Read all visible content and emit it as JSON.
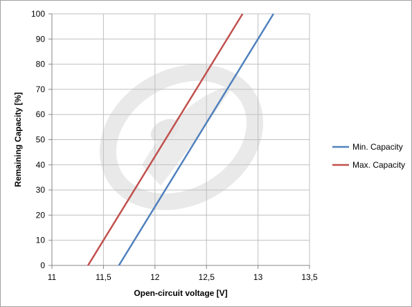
{
  "chart_data": {
    "type": "line",
    "xlabel": "Open-circuit voltage [V]",
    "ylabel": "Remaining Capacity [%]",
    "xlim": [
      11,
      13.5
    ],
    "ylim": [
      0,
      100
    ],
    "x_ticks": [
      {
        "value": 11,
        "label": "11"
      },
      {
        "value": 11.5,
        "label": "11,5"
      },
      {
        "value": 12,
        "label": "12"
      },
      {
        "value": 12.5,
        "label": "12,5"
      },
      {
        "value": 13,
        "label": "13"
      },
      {
        "value": 13.5,
        "label": "13,5"
      }
    ],
    "y_ticks": [
      {
        "value": 0,
        "label": "0"
      },
      {
        "value": 10,
        "label": "10"
      },
      {
        "value": 20,
        "label": "20"
      },
      {
        "value": 30,
        "label": "30"
      },
      {
        "value": 40,
        "label": "40"
      },
      {
        "value": 50,
        "label": "50"
      },
      {
        "value": 60,
        "label": "60"
      },
      {
        "value": 70,
        "label": "70"
      },
      {
        "value": 80,
        "label": "80"
      },
      {
        "value": 90,
        "label": "90"
      },
      {
        "value": 100,
        "label": "100"
      }
    ],
    "grid": true,
    "legend_position": "right",
    "series": [
      {
        "name": "Min. Capacity",
        "color": "#4f81bd",
        "x": [
          11.65,
          13.15
        ],
        "y": [
          0,
          100
        ]
      },
      {
        "name": "Max. Capacity",
        "color": "#c0504d",
        "x": [
          11.35,
          12.85
        ],
        "y": [
          0,
          100
        ]
      }
    ]
  }
}
